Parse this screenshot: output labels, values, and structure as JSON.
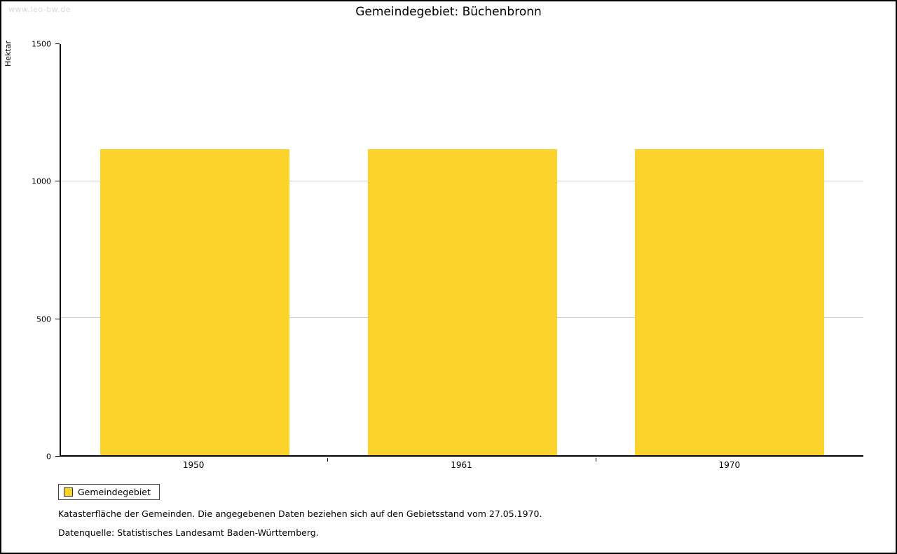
{
  "watermark": "www.leo-bw.de",
  "title": "Gemeindegebiet: Büchenbronn",
  "chart_data": {
    "type": "bar",
    "categories": [
      "1950",
      "1961",
      "1970"
    ],
    "series": [
      {
        "name": "Gemeindegebiet",
        "values": [
          1118,
          1118,
          1118
        ]
      }
    ],
    "title": "Gemeindegebiet: Büchenbronn",
    "xlabel": "",
    "ylabel": "Hektar",
    "ylim": [
      0,
      1500
    ],
    "yticks": [
      0,
      500,
      1000,
      1500
    ],
    "grid": true,
    "legend_position": "bottom-left",
    "bar_color": "#FCD32B",
    "gridline_color": "#cccccc"
  },
  "legend": {
    "label": "Gemeindegebiet"
  },
  "footnotes": {
    "line1": "Katasterfläche der Gemeinden. Die angegebenen Daten beziehen sich auf den Gebietsstand vom 27.05.1970.",
    "line2": "Datenquelle: Statistisches Landesamt Baden-Württemberg."
  }
}
